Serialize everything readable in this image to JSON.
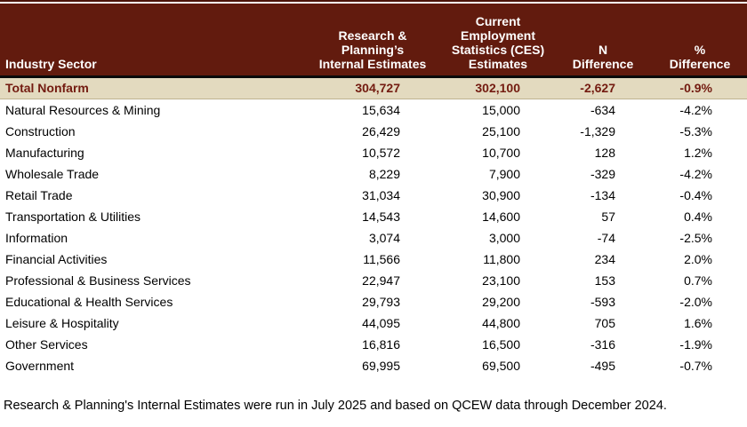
{
  "colors": {
    "header_bg": "#621B0E",
    "header_text": "#FFFFFF",
    "total_row_bg": "#E3DABF",
    "total_row_text": "#731B10",
    "divider": "#0A0A0A",
    "body_text": "#000000"
  },
  "chart_data": {
    "type": "table",
    "columns": [
      "Industry Sector",
      "Research &\nPlanning’s\nInternal Estimates",
      "Current\nEmployment\nStatistics (CES)\nEstimates",
      "N\nDifference",
      "%\nDifference"
    ],
    "total_row": {
      "sector": "Total Nonfarm",
      "internal": "304,727",
      "ces": "302,100",
      "n_diff": "-2,627",
      "pct_diff": "-0.9%"
    },
    "rows": [
      {
        "sector": "Natural Resources & Mining",
        "internal": "15,634",
        "ces": "15,000",
        "n_diff": "-634",
        "pct_diff": "-4.2%"
      },
      {
        "sector": "Construction",
        "internal": "26,429",
        "ces": "25,100",
        "n_diff": "-1,329",
        "pct_diff": "-5.3%"
      },
      {
        "sector": "Manufacturing",
        "internal": "10,572",
        "ces": "10,700",
        "n_diff": "128",
        "pct_diff": "1.2%"
      },
      {
        "sector": "Wholesale Trade",
        "internal": "8,229",
        "ces": "7,900",
        "n_diff": "-329",
        "pct_diff": "-4.2%"
      },
      {
        "sector": "Retail Trade",
        "internal": "31,034",
        "ces": "30,900",
        "n_diff": "-134",
        "pct_diff": "-0.4%"
      },
      {
        "sector": "Transportation & Utilities",
        "internal": "14,543",
        "ces": "14,600",
        "n_diff": "57",
        "pct_diff": "0.4%"
      },
      {
        "sector": "Information",
        "internal": "3,074",
        "ces": "3,000",
        "n_diff": "-74",
        "pct_diff": "-2.5%"
      },
      {
        "sector": "Financial Activities",
        "internal": "11,566",
        "ces": "11,800",
        "n_diff": "234",
        "pct_diff": "2.0%"
      },
      {
        "sector": "Professional & Business Services",
        "internal": "22,947",
        "ces": "23,100",
        "n_diff": "153",
        "pct_diff": "0.7%"
      },
      {
        "sector": "Educational & Health Services",
        "internal": "29,793",
        "ces": "29,200",
        "n_diff": "-593",
        "pct_diff": "-2.0%"
      },
      {
        "sector": "Leisure & Hospitality",
        "internal": "44,095",
        "ces": "44,800",
        "n_diff": "705",
        "pct_diff": "1.6%"
      },
      {
        "sector": "Other Services",
        "internal": "16,816",
        "ces": "16,500",
        "n_diff": "-316",
        "pct_diff": "-1.9%"
      },
      {
        "sector": "Government",
        "internal": "69,995",
        "ces": "69,500",
        "n_diff": "-495",
        "pct_diff": "-0.7%"
      }
    ],
    "footnote": "Research & Planning's Internal Estimates were run in July 2025 and based on QCEW data through December 2024."
  }
}
